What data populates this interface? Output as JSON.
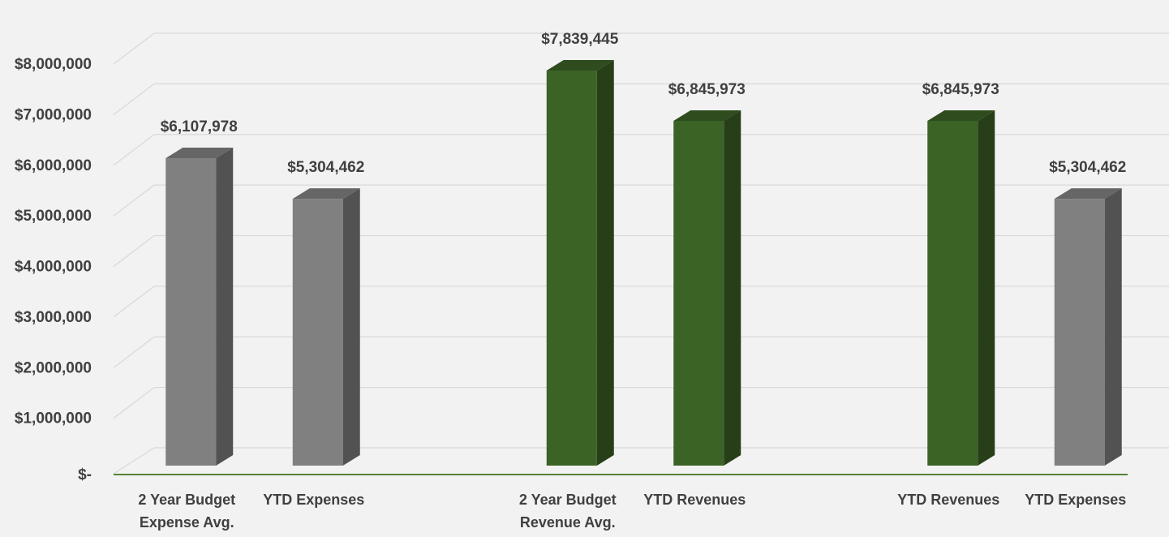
{
  "chart_data": {
    "type": "bar",
    "title": "",
    "xlabel": "",
    "ylabel": "",
    "ylim": [
      0,
      8000000
    ],
    "y_ticks": [
      0,
      1000000,
      2000000,
      3000000,
      4000000,
      5000000,
      6000000,
      7000000,
      8000000
    ],
    "y_tick_labels": [
      "$-",
      "$1,000,000",
      "$2,000,000",
      "$3,000,000",
      "$4,000,000",
      "$5,000,000",
      "$6,000,000",
      "$7,000,000",
      "$8,000,000"
    ],
    "grid": true,
    "style": "3d-column",
    "categories": [
      [
        "2 Year Budget",
        "Expense Avg."
      ],
      [
        "YTD Expenses"
      ],
      [],
      [
        "2 Year  Budget",
        "Revenue Avg."
      ],
      [
        "YTD Revenues"
      ],
      [],
      [
        "YTD Revenues"
      ],
      [
        "YTD Expenses"
      ]
    ],
    "values": [
      6107978,
      5304462,
      null,
      7839445,
      6845973,
      null,
      6845973,
      5304462
    ],
    "data_labels": [
      "$6,107,978",
      "$5,304,462",
      "",
      "$7,839,445",
      "$6,845,973",
      "",
      "$6,845,973",
      "$5,304,462"
    ],
    "bar_colors": [
      "gray",
      "gray",
      "",
      "green",
      "green",
      "",
      "green",
      "gray"
    ]
  },
  "colors": {
    "gray": {
      "front": "#808080",
      "side": "#525252",
      "top": "#666666"
    },
    "green": {
      "front": "#3c6326",
      "side": "#273f18",
      "top": "#2e4c1d"
    },
    "gridline": "#d9d9d9",
    "baseline": "#548235",
    "text": "#404040"
  }
}
